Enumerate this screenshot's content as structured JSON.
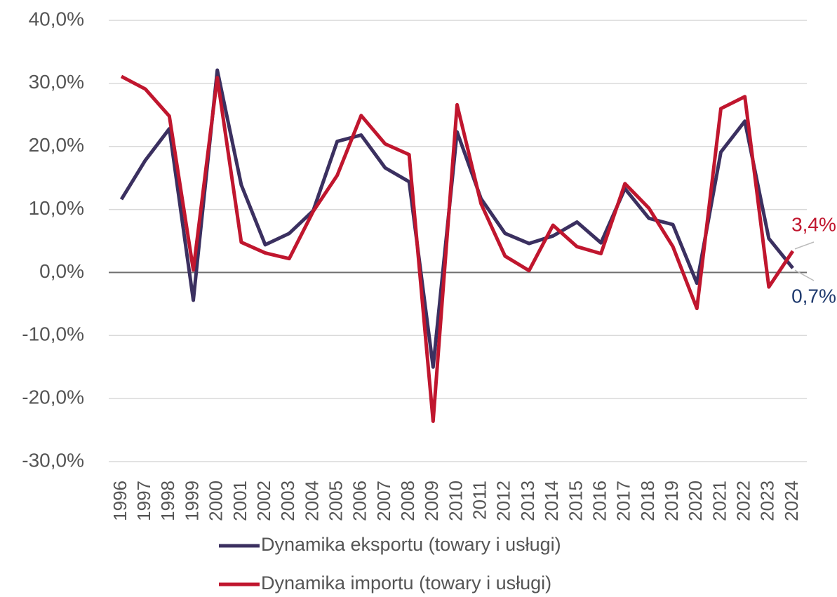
{
  "chart_data": {
    "type": "line",
    "categories": [
      "1996",
      "1997",
      "1998",
      "1999",
      "2000",
      "2001",
      "2002",
      "2003",
      "2004",
      "2005",
      "2006",
      "2007",
      "2008",
      "2009",
      "2010",
      "2011",
      "2012",
      "2013",
      "2014",
      "2015",
      "2016",
      "2017",
      "2018",
      "2019",
      "2020",
      "2021",
      "2022",
      "2023",
      "2024"
    ],
    "series": [
      {
        "name": "Dynamika eksportu (towary i usługi)",
        "color": "#3b3060",
        "values": [
          11.6,
          17.8,
          22.8,
          -4.4,
          32.1,
          13.9,
          4.4,
          6.2,
          9.8,
          20.8,
          21.8,
          16.6,
          14.4,
          -15.0,
          22.3,
          11.7,
          6.2,
          4.6,
          5.8,
          8.0,
          4.7,
          13.3,
          8.6,
          7.6,
          -1.7,
          19.1,
          24.0,
          5.4,
          0.7
        ],
        "label_color": "#1f3a6e",
        "value_labels": {
          "28": "0,7%"
        }
      },
      {
        "name": "Dynamika importu (towary i usługi)",
        "color": "#c0162e",
        "values": [
          31.1,
          29.1,
          24.8,
          0.4,
          30.9,
          4.8,
          3.1,
          2.2,
          9.7,
          15.4,
          24.9,
          20.4,
          18.7,
          -23.6,
          26.6,
          10.9,
          2.6,
          0.3,
          7.5,
          4.1,
          3.0,
          14.1,
          10.2,
          4.1,
          -5.7,
          26.0,
          27.9,
          -2.3,
          3.4
        ],
        "label_color": "#c0162e",
        "value_labels": {
          "28": "3,4%"
        }
      }
    ],
    "ylim": [
      -30,
      40
    ],
    "yticks": [
      {
        "value": -30,
        "label": "-30,0%"
      },
      {
        "value": -20,
        "label": "-20,0%"
      },
      {
        "value": -10,
        "label": "-10,0%"
      },
      {
        "value": 0,
        "label": "0,0%"
      },
      {
        "value": 10,
        "label": "10,0%"
      },
      {
        "value": 20,
        "label": "20,0%"
      },
      {
        "value": 30,
        "label": "30,0%"
      },
      {
        "value": 40,
        "label": "40,0%"
      }
    ],
    "grid": true
  }
}
